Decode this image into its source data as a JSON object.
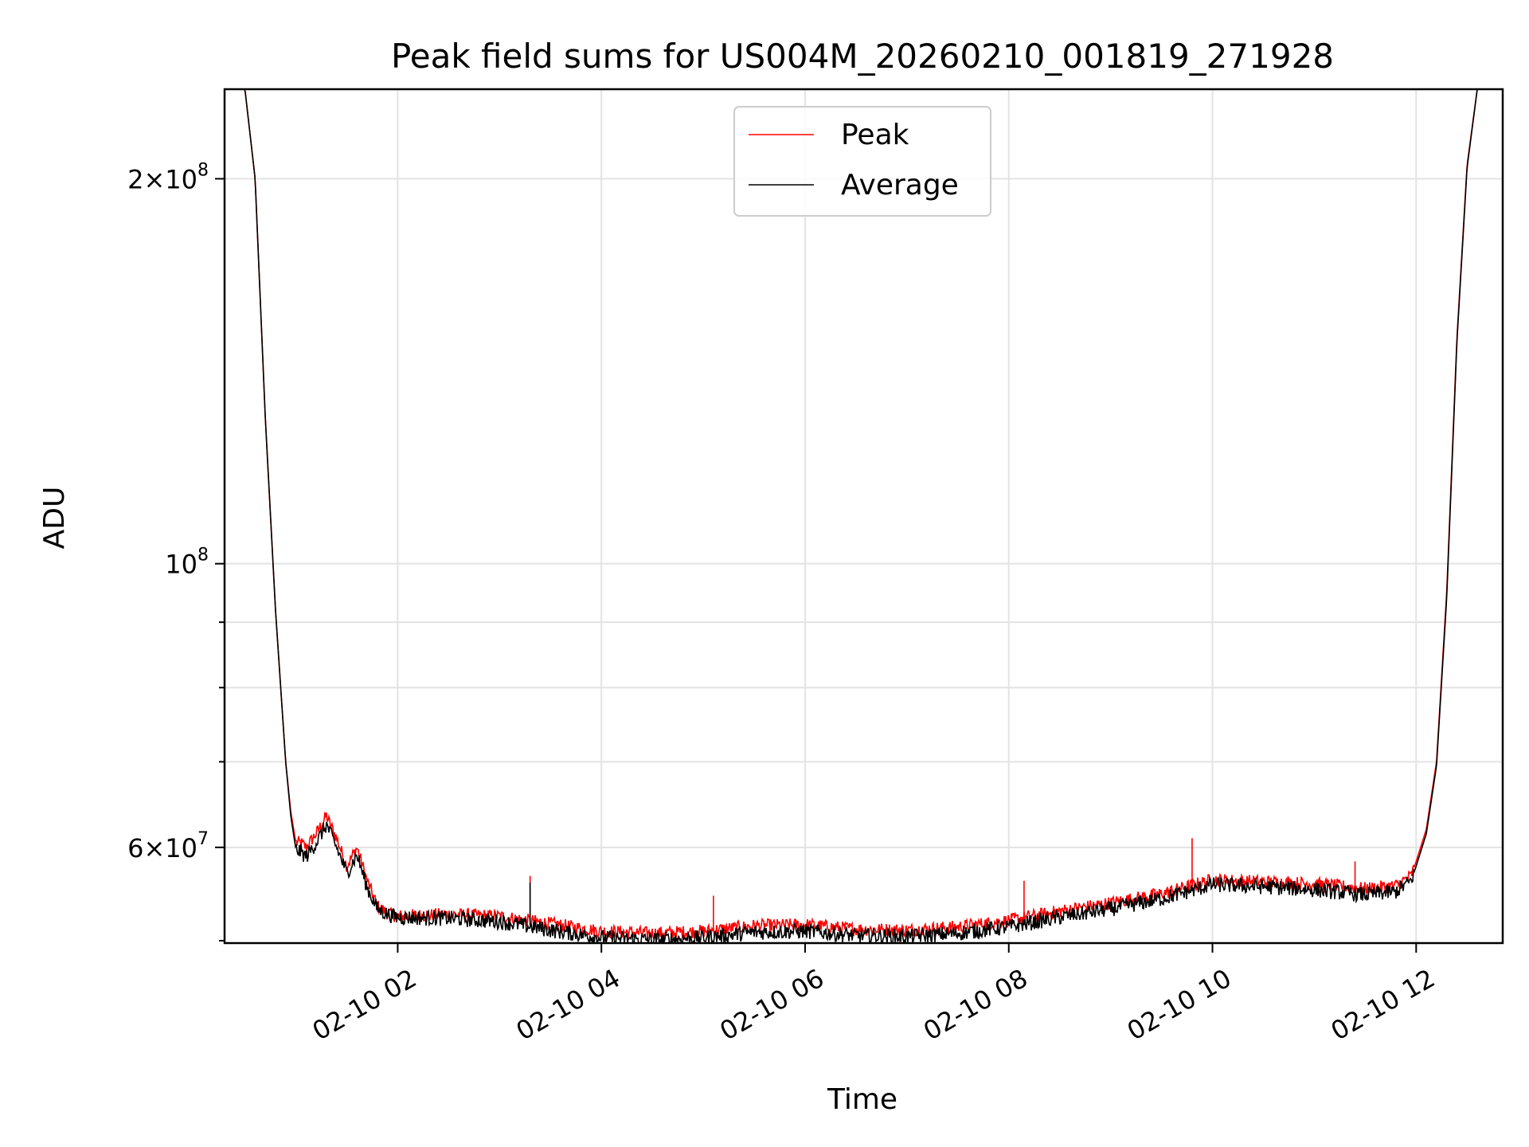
{
  "chart_data": {
    "type": "line",
    "title": "Peak field sums for US004M_20260210_001819_271928",
    "xlabel": "Time",
    "ylabel": "ADU",
    "yscale": "log",
    "x_units": "hours since 2026-02-10 00:00",
    "xlim": [
      0.3,
      12.85
    ],
    "ylim": [
      50500000,
      235000000
    ],
    "grid": true,
    "legend_position": "top-center",
    "x_ticks": [
      {
        "value": 2,
        "label": "02-10 02"
      },
      {
        "value": 4,
        "label": "02-10 04"
      },
      {
        "value": 6,
        "label": "02-10 06"
      },
      {
        "value": 8,
        "label": "02-10 08"
      },
      {
        "value": 10,
        "label": "02-10 10"
      },
      {
        "value": 12,
        "label": "02-10 12"
      }
    ],
    "y_major_ticks": [
      {
        "value": 60000000,
        "mant": "6",
        "exp": "7"
      },
      {
        "value": 100000000,
        "mant": "",
        "exp": "8"
      },
      {
        "value": 200000000,
        "mant": "2",
        "exp": "8"
      }
    ],
    "y_minor_ticks": [
      70000000,
      80000000,
      90000000
    ],
    "series": [
      {
        "name": "Peak",
        "color": "#ff0000",
        "x": [
          0.3,
          0.5,
          0.6,
          0.7,
          0.8,
          0.9,
          0.95,
          1.0,
          1.05,
          1.1,
          1.2,
          1.3,
          1.4,
          1.5,
          1.6,
          1.7,
          1.8,
          1.9,
          2.0,
          2.5,
          3.0,
          3.5,
          4.0,
          4.5,
          5.0,
          5.5,
          6.0,
          6.5,
          7.0,
          7.5,
          8.0,
          8.5,
          9.0,
          9.5,
          10.0,
          10.5,
          11.0,
          11.5,
          11.8,
          11.95,
          12.0,
          12.1,
          12.2,
          12.3,
          12.4,
          12.5,
          12.6,
          12.85
        ],
        "y": [
          235000000,
          235000000,
          200000000,
          130000000,
          92000000,
          70000000,
          64000000,
          60500000,
          60500000,
          60000000,
          61500000,
          63500000,
          61000000,
          58000000,
          60000000,
          56500000,
          54000000,
          53300000,
          53000000,
          53200000,
          53000000,
          52300000,
          51600000,
          51400000,
          51600000,
          52100000,
          52200000,
          51800000,
          51700000,
          52000000,
          52600000,
          53500000,
          54300000,
          55200000,
          56600000,
          56400000,
          56200000,
          55700000,
          56000000,
          57000000,
          58500000,
          62000000,
          70000000,
          95000000,
          150000000,
          205000000,
          235000000,
          235000000
        ]
      },
      {
        "name": "Average",
        "color": "#000000",
        "x": [
          0.3,
          0.5,
          0.6,
          0.7,
          0.8,
          0.9,
          0.95,
          1.0,
          1.05,
          1.1,
          1.2,
          1.3,
          1.4,
          1.5,
          1.6,
          1.7,
          1.8,
          1.9,
          2.0,
          2.5,
          3.0,
          3.5,
          4.0,
          4.5,
          5.0,
          5.5,
          6.0,
          6.5,
          7.0,
          7.5,
          8.0,
          8.5,
          9.0,
          9.5,
          10.0,
          10.5,
          11.0,
          11.5,
          11.8,
          11.95,
          12.0,
          12.1,
          12.2,
          12.3,
          12.4,
          12.5,
          12.6,
          12.85
        ],
        "y": [
          235000000,
          235000000,
          200000000,
          130000000,
          92000000,
          70000000,
          63500000,
          59800000,
          59500000,
          59000000,
          60500000,
          62500000,
          60000000,
          57300000,
          59200000,
          55800000,
          53700000,
          53200000,
          52900000,
          52800000,
          52500000,
          51700000,
          51000000,
          50800000,
          51000000,
          51500000,
          51600000,
          51200000,
          51100000,
          51400000,
          52000000,
          52900000,
          53700000,
          54700000,
          56100000,
          55900000,
          55600000,
          55100000,
          55400000,
          56500000,
          58000000,
          61500000,
          69500000,
          94000000,
          149000000,
          204000000,
          235000000,
          235000000
        ]
      }
    ],
    "spikes": [
      {
        "series": "Peak",
        "x": 3.3,
        "y": 57000000
      },
      {
        "series": "Peak",
        "x": 5.1,
        "y": 55000000
      },
      {
        "series": "Peak",
        "x": 8.15,
        "y": 56500000
      },
      {
        "series": "Peak",
        "x": 9.8,
        "y": 61000000
      },
      {
        "series": "Peak",
        "x": 11.4,
        "y": 58500000
      },
      {
        "series": "Average",
        "x": 3.3,
        "y": 56300000
      }
    ]
  }
}
